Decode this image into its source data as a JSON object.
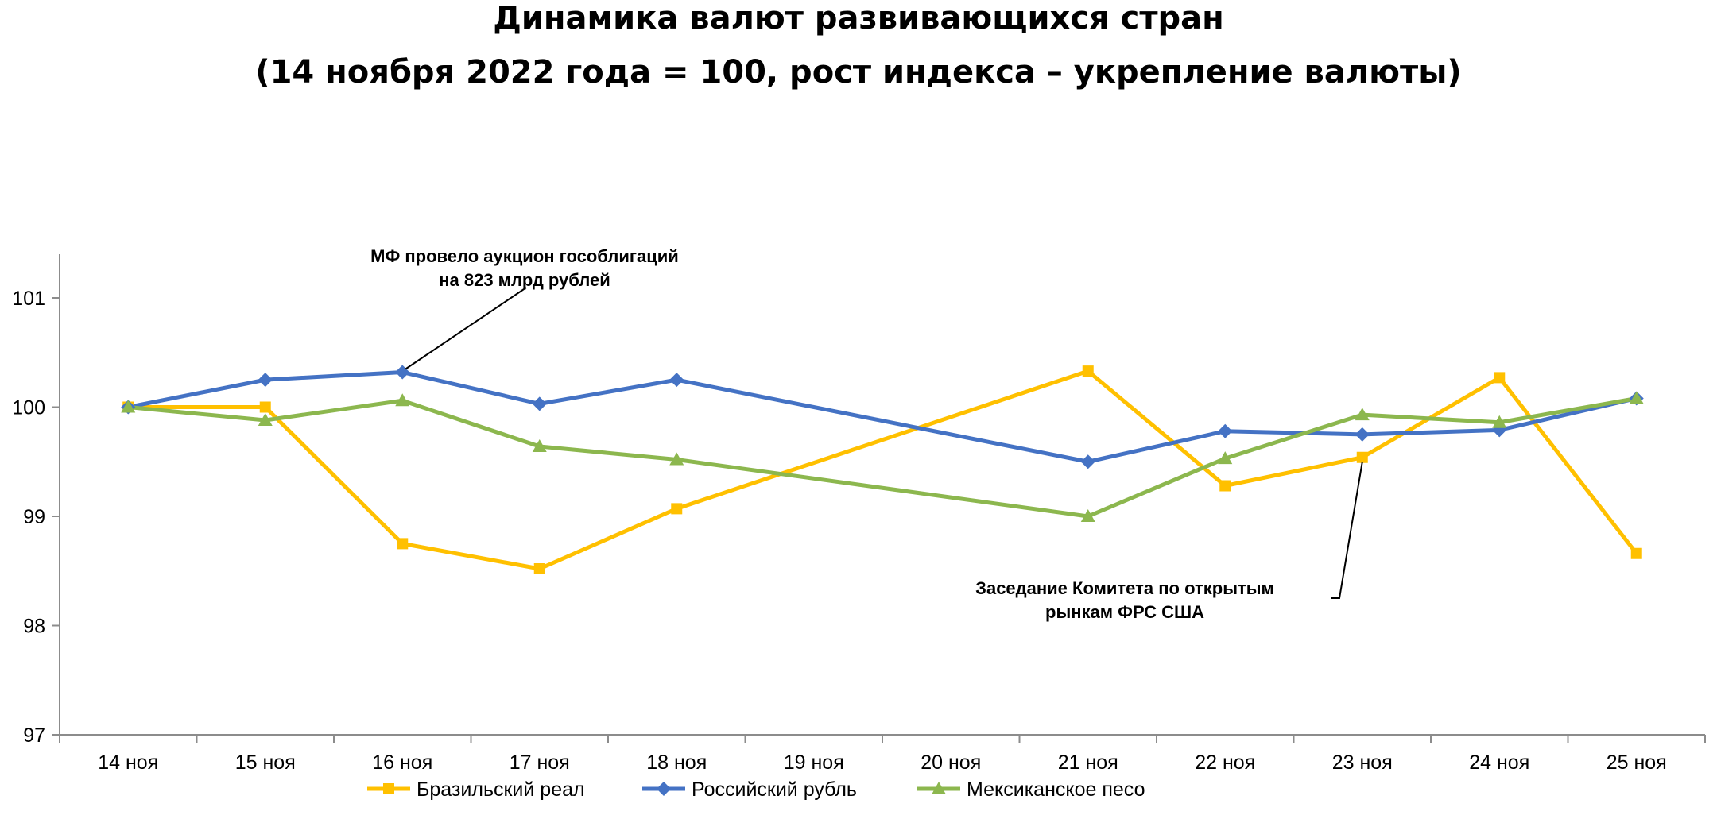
{
  "chart_data": {
    "type": "line",
    "title": "Динамика валют развивающихся стран",
    "subtitle": "(14 ноября 2022 года = 100, рост индекса – укрепление валюты)",
    "categories": [
      "14 ноя",
      "15 ноя",
      "16 ноя",
      "17 ноя",
      "18 ноя",
      "19 ноя",
      "20 ноя",
      "21 ноя",
      "22 ноя",
      "23 ноя",
      "24 ноя",
      "25 ноя"
    ],
    "ylim": [
      97,
      101.5
    ],
    "yticks": [
      "97",
      "98",
      "99",
      "100",
      "101"
    ],
    "grid": false,
    "legend_position": "bottom",
    "series": [
      {
        "name": "Бразильский реал",
        "color": "#FFC000",
        "marker": "square",
        "values": [
          100.0,
          100.0,
          98.75,
          98.52,
          99.07,
          null,
          null,
          100.33,
          99.28,
          99.54,
          100.27,
          98.66
        ]
      },
      {
        "name": "Российский рубль",
        "color": "#4472C4",
        "marker": "diamond",
        "values": [
          100.0,
          100.25,
          100.32,
          100.03,
          100.25,
          null,
          null,
          99.5,
          99.78,
          99.75,
          99.79,
          100.08
        ]
      },
      {
        "name": "Мексиканское песо",
        "color": "#8CB74E",
        "marker": "triangle",
        "values": [
          100.0,
          99.88,
          100.06,
          99.64,
          99.52,
          null,
          null,
          99.0,
          99.53,
          99.93,
          99.86,
          100.08
        ]
      }
    ],
    "annotations": [
      {
        "lines": [
          "МФ провело аукцион гособлигаций",
          "на 823 млрд рублей"
        ],
        "points_to": {
          "series": 1,
          "index": 2
        }
      },
      {
        "lines": [
          "Заседание Комитета по открытым",
          "рынкам ФРС США"
        ],
        "points_to": {
          "series": 0,
          "index": 9
        }
      }
    ]
  }
}
